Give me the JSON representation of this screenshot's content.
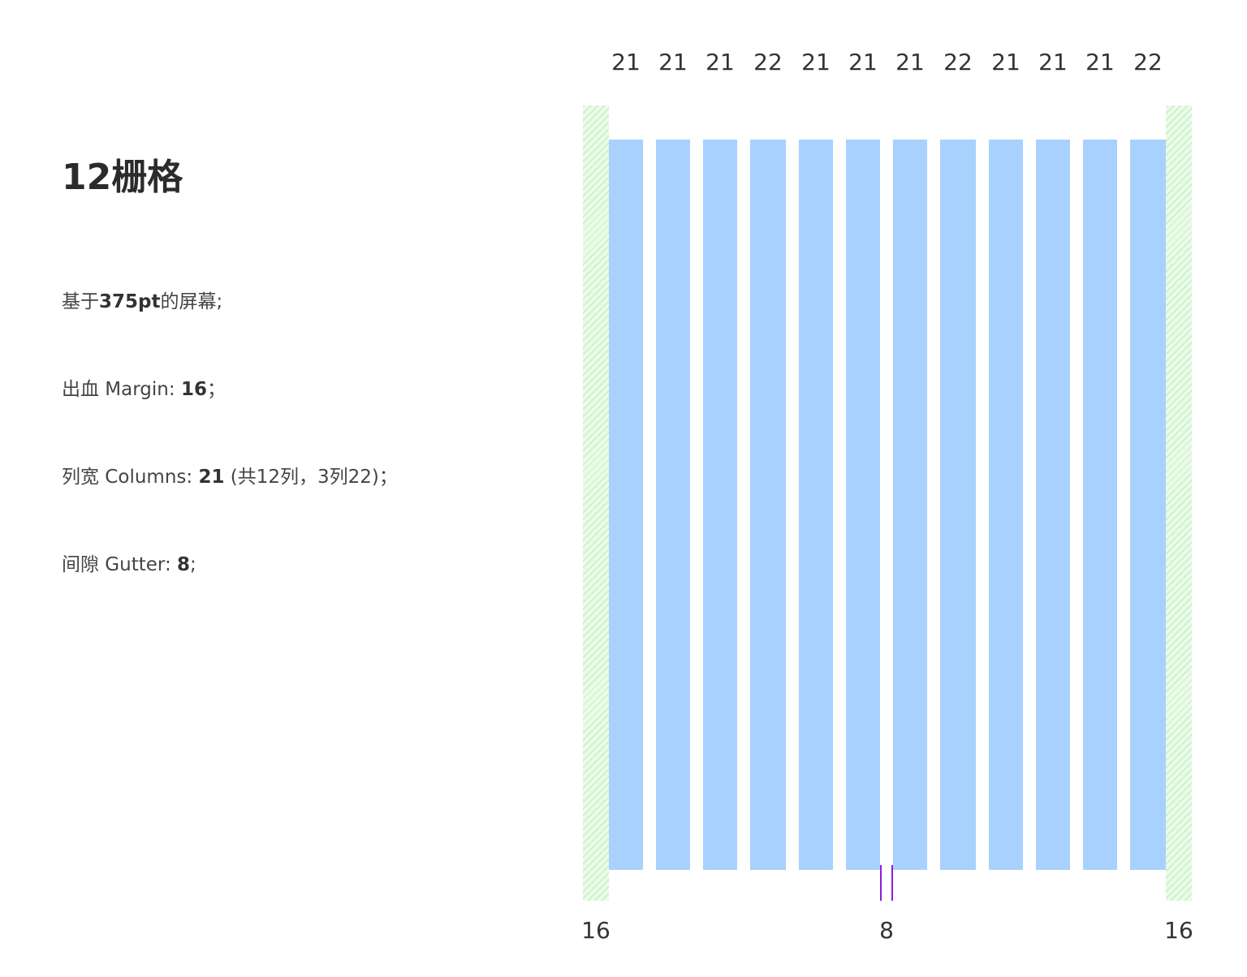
{
  "title": "12栅格",
  "description": {
    "line1": {
      "prefix": "基于",
      "value": "375pt",
      "suffix": "的屏幕;"
    },
    "line2": {
      "prefix": "出血 Margin: ",
      "value": "16",
      "suffix": "；"
    },
    "line3": {
      "prefix": "列宽 Columns: ",
      "value": "21",
      "suffix": " (共12列，3列22)；"
    },
    "line4": {
      "prefix": "间隙 Gutter: ",
      "value": "8",
      "suffix": ";"
    }
  },
  "grid": {
    "column_widths": [
      21,
      21,
      21,
      22,
      21,
      21,
      21,
      22,
      21,
      21,
      21,
      22
    ],
    "column_labels": [
      "21",
      "21",
      "21",
      "22",
      "21",
      "21",
      "21",
      "22",
      "21",
      "21",
      "21",
      "22"
    ],
    "margin_left_label": "16",
    "gutter_label": "8",
    "margin_right_label": "16",
    "colors": {
      "column": "#a9d1fd",
      "margin": "#eafbe8",
      "gutter_marker": "#8a1ee0"
    }
  }
}
